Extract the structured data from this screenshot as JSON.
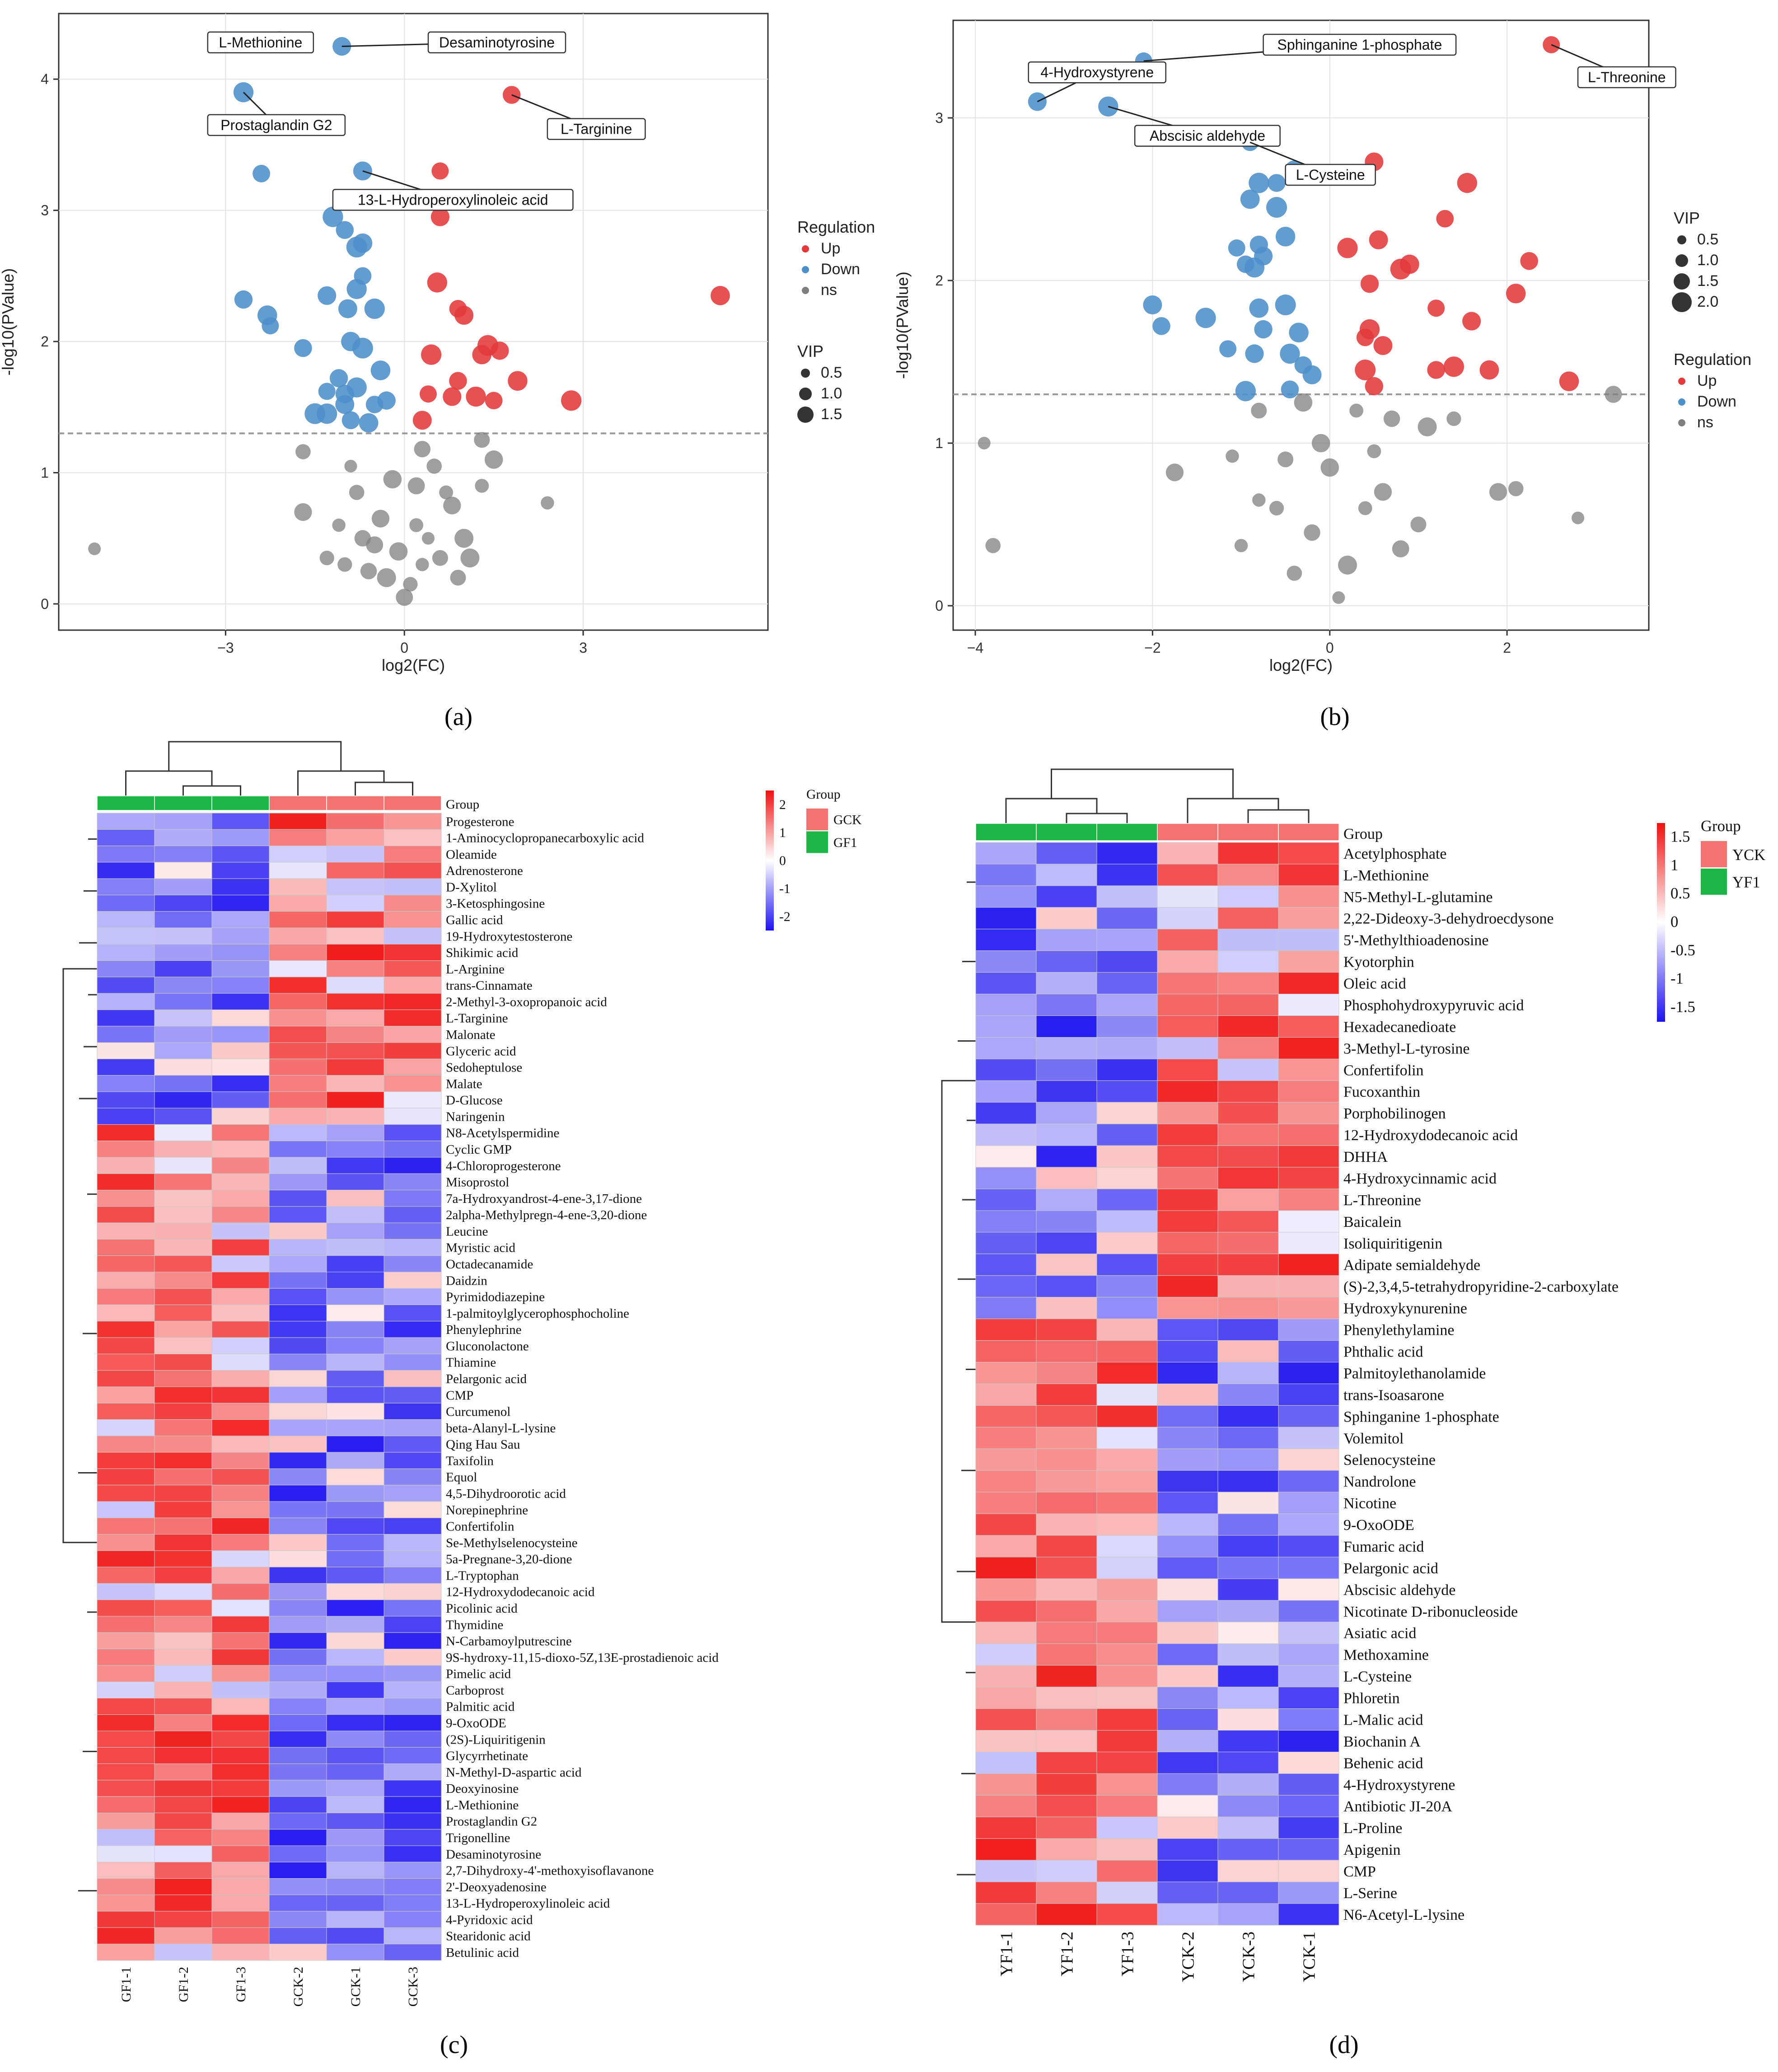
{
  "colors": {
    "up": "#e3393b",
    "down": "#4d8fc9",
    "ns": "#7f7f7f",
    "group_green": "#1db545",
    "group_red": "#f2736f",
    "heat_low": "#1c12f0",
    "heat_mid": "#ffffff",
    "heat_high": "#f01010"
  },
  "panels": {
    "a": "(a)",
    "b": "(b)",
    "c": "(c)",
    "d": "(d)"
  },
  "chart_data": [
    {
      "type": "scatter",
      "panel": "a",
      "xlabel": "log2(FC)",
      "ylabel": "-log10(PValue)",
      "xlim": [
        -5.8,
        6.1
      ],
      "ylim": [
        -0.2,
        4.5
      ],
      "xticks": [
        -3,
        0,
        3
      ],
      "yticks": [
        0,
        1,
        2,
        3,
        4
      ],
      "threshold": 1.3,
      "grid": true,
      "legend": {
        "regulation_title": "Regulation",
        "regulation": [
          "Up",
          "Down",
          "ns"
        ],
        "vip_title": "VIP",
        "vip": [
          "0.5",
          "1.0",
          "1.5"
        ]
      },
      "up": [
        [
          0.6,
          3.3
        ],
        [
          0.6,
          2.95
        ],
        [
          0.55,
          2.45
        ],
        [
          0.9,
          2.25
        ],
        [
          1.0,
          2.2
        ],
        [
          0.45,
          1.9
        ],
        [
          0.9,
          1.7
        ],
        [
          1.3,
          1.9
        ],
        [
          1.4,
          1.97
        ],
        [
          1.6,
          1.93
        ],
        [
          1.9,
          1.7
        ],
        [
          0.4,
          1.6
        ],
        [
          0.8,
          1.58
        ],
        [
          1.2,
          1.58
        ],
        [
          1.5,
          1.55
        ],
        [
          0.3,
          1.4
        ],
        [
          2.8,
          1.55
        ],
        [
          1.8,
          3.88
        ],
        [
          5.3,
          2.35
        ]
      ],
      "down": [
        [
          -2.1,
          4.3
        ],
        [
          -1.05,
          4.25
        ],
        [
          -2.7,
          3.9
        ],
        [
          -2.4,
          3.28
        ],
        [
          -0.7,
          3.3
        ],
        [
          -1.2,
          2.95
        ],
        [
          -1.0,
          2.85
        ],
        [
          -0.7,
          2.75
        ],
        [
          -0.8,
          2.72
        ],
        [
          -2.7,
          2.32
        ],
        [
          -2.3,
          2.2
        ],
        [
          -2.25,
          2.12
        ],
        [
          -1.3,
          2.35
        ],
        [
          -0.8,
          2.4
        ],
        [
          -0.7,
          2.5
        ],
        [
          -0.95,
          2.25
        ],
        [
          -0.5,
          2.25
        ],
        [
          -1.7,
          1.95
        ],
        [
          -0.9,
          2.0
        ],
        [
          -0.7,
          1.95
        ],
        [
          -1.1,
          1.72
        ],
        [
          -0.4,
          1.78
        ],
        [
          -1.3,
          1.62
        ],
        [
          -1.0,
          1.6
        ],
        [
          -0.8,
          1.65
        ],
        [
          -0.5,
          1.52
        ],
        [
          -1.0,
          1.52
        ],
        [
          -1.3,
          1.45
        ],
        [
          -0.9,
          1.4
        ],
        [
          -0.6,
          1.38
        ],
        [
          -1.5,
          1.45
        ],
        [
          -0.3,
          1.55
        ]
      ],
      "ns": [
        [
          -5.2,
          0.42
        ],
        [
          -1.7,
          1.16
        ],
        [
          -1.7,
          0.7
        ],
        [
          2.4,
          0.77
        ],
        [
          1.3,
          1.25
        ],
        [
          1.5,
          1.1
        ],
        [
          1.3,
          0.9
        ],
        [
          0.3,
          1.18
        ],
        [
          -0.3,
          0.2
        ],
        [
          0.1,
          0.15
        ],
        [
          -0.5,
          0.45
        ],
        [
          0.4,
          0.5
        ],
        [
          -0.8,
          0.85
        ],
        [
          0.8,
          0.75
        ],
        [
          -1.1,
          0.6
        ],
        [
          0.6,
          0.35
        ],
        [
          -0.2,
          0.95
        ],
        [
          0.2,
          0.6
        ],
        [
          -0.6,
          0.25
        ],
        [
          1.0,
          0.5
        ],
        [
          -1.3,
          0.35
        ],
        [
          0.0,
          0.05
        ],
        [
          -0.9,
          1.05
        ],
        [
          0.5,
          1.05
        ],
        [
          -0.4,
          0.65
        ],
        [
          0.3,
          0.3
        ],
        [
          0.9,
          0.2
        ],
        [
          -0.1,
          0.4
        ],
        [
          0.7,
          0.85
        ],
        [
          -0.7,
          0.5
        ],
        [
          1.1,
          0.35
        ],
        [
          -1.0,
          0.3
        ],
        [
          0.2,
          0.9
        ]
      ],
      "labels": [
        {
          "text": "L-Methionine",
          "pt": [
            -2.1,
            4.3
          ],
          "box": [
            -3.3,
            4.28
          ]
        },
        {
          "text": "Desaminotyrosine",
          "pt": [
            -1.05,
            4.25
          ],
          "box": [
            0.4,
            4.28
          ]
        },
        {
          "text": "Prostaglandin G2",
          "pt": [
            -2.7,
            3.9
          ],
          "box": [
            -3.3,
            3.65
          ]
        },
        {
          "text": "L-Targinine",
          "pt": [
            1.8,
            3.88
          ],
          "box": [
            2.4,
            3.62
          ]
        },
        {
          "text": "13-L-Hydroperoxylinoleic acid",
          "pt": [
            -0.7,
            3.3
          ],
          "box": [
            -1.2,
            3.08
          ]
        }
      ]
    },
    {
      "type": "scatter",
      "panel": "b",
      "xlabel": "log2(FC)",
      "ylabel": "-log10(PValue)",
      "xlim": [
        -4.25,
        3.6
      ],
      "ylim": [
        -0.15,
        3.6
      ],
      "xticks": [
        -4,
        -2,
        0,
        2
      ],
      "yticks": [
        0,
        1,
        2,
        3
      ],
      "threshold": 1.3,
      "grid": true,
      "legend": {
        "vip_title": "VIP",
        "vip": [
          "0.5",
          "1.0",
          "1.5",
          "2.0"
        ],
        "regulation_title": "Regulation",
        "regulation": [
          "Up",
          "Down",
          "ns"
        ]
      },
      "up": [
        [
          2.5,
          3.45
        ],
        [
          0.5,
          2.73
        ],
        [
          1.55,
          2.6
        ],
        [
          1.3,
          2.38
        ],
        [
          0.55,
          2.25
        ],
        [
          0.2,
          2.2
        ],
        [
          2.25,
          2.12
        ],
        [
          0.9,
          2.1
        ],
        [
          0.8,
          2.07
        ],
        [
          0.45,
          1.98
        ],
        [
          2.1,
          1.92
        ],
        [
          1.2,
          1.83
        ],
        [
          1.6,
          1.75
        ],
        [
          0.45,
          1.7
        ],
        [
          0.4,
          1.65
        ],
        [
          0.6,
          1.6
        ],
        [
          1.4,
          1.47
        ],
        [
          1.2,
          1.45
        ],
        [
          1.8,
          1.45
        ],
        [
          0.4,
          1.45
        ],
        [
          0.5,
          1.35
        ],
        [
          2.7,
          1.38
        ]
      ],
      "down": [
        [
          -2.1,
          3.35
        ],
        [
          -3.3,
          3.1
        ],
        [
          -2.5,
          3.07
        ],
        [
          -0.9,
          2.85
        ],
        [
          -0.4,
          2.68
        ],
        [
          -0.8,
          2.6
        ],
        [
          -0.6,
          2.6
        ],
        [
          -0.9,
          2.5
        ],
        [
          -0.6,
          2.45
        ],
        [
          -0.8,
          2.22
        ],
        [
          -0.5,
          2.27
        ],
        [
          -1.05,
          2.2
        ],
        [
          -0.75,
          2.15
        ],
        [
          -0.85,
          2.08
        ],
        [
          -0.95,
          2.1
        ],
        [
          -2.0,
          1.85
        ],
        [
          -1.4,
          1.77
        ],
        [
          -1.9,
          1.72
        ],
        [
          -0.8,
          1.83
        ],
        [
          -0.5,
          1.85
        ],
        [
          -0.75,
          1.7
        ],
        [
          -0.35,
          1.68
        ],
        [
          -1.15,
          1.58
        ],
        [
          -0.85,
          1.55
        ],
        [
          -0.45,
          1.55
        ],
        [
          -0.3,
          1.48
        ],
        [
          -0.2,
          1.42
        ],
        [
          -0.95,
          1.32
        ],
        [
          -0.45,
          1.33
        ]
      ],
      "ns": [
        [
          -3.9,
          1.0
        ],
        [
          -3.8,
          0.37
        ],
        [
          -1.75,
          0.82
        ],
        [
          -1.1,
          0.92
        ],
        [
          -0.8,
          1.2
        ],
        [
          -0.3,
          1.25
        ],
        [
          0.3,
          1.2
        ],
        [
          0.7,
          1.15
        ],
        [
          1.1,
          1.1
        ],
        [
          1.4,
          1.15
        ],
        [
          3.2,
          1.3
        ],
        [
          2.8,
          0.54
        ],
        [
          2.1,
          0.72
        ],
        [
          1.9,
          0.7
        ],
        [
          -1.0,
          0.37
        ],
        [
          -0.5,
          0.9
        ],
        [
          0.0,
          0.85
        ],
        [
          0.4,
          0.6
        ],
        [
          -0.2,
          0.45
        ],
        [
          0.2,
          0.25
        ],
        [
          -0.6,
          0.6
        ],
        [
          0.8,
          0.35
        ],
        [
          0.1,
          0.05
        ],
        [
          -0.4,
          0.2
        ],
        [
          0.6,
          0.7
        ],
        [
          -0.8,
          0.65
        ],
        [
          1.0,
          0.5
        ],
        [
          -0.1,
          1.0
        ],
        [
          0.5,
          0.95
        ]
      ],
      "labels": [
        {
          "text": "Sphinganine 1-phosphate",
          "pt": [
            -2.1,
            3.35
          ],
          "box": [
            -0.75,
            3.45
          ]
        },
        {
          "text": "4-Hydroxystyrene",
          "pt": [
            -3.3,
            3.1
          ],
          "box": [
            -3.4,
            3.28
          ]
        },
        {
          "text": "Abscisic aldehyde",
          "pt": [
            -2.5,
            3.07
          ],
          "box": [
            -2.2,
            2.89
          ]
        },
        {
          "text": "L-Cysteine",
          "pt": [
            -0.9,
            2.85
          ],
          "box": [
            -0.5,
            2.65
          ]
        },
        {
          "text": "L-Threonine",
          "pt": [
            2.5,
            3.45
          ],
          "box": [
            2.8,
            3.25
          ]
        }
      ]
    },
    {
      "type": "heatmap",
      "panel": "c",
      "columns": [
        "GF1-1",
        "GF1-2",
        "GF1-3",
        "GCK-2",
        "GCK-1",
        "GCK-3"
      ],
      "column_groups": [
        "GF1",
        "GF1",
        "GF1",
        "GCK",
        "GCK",
        "GCK"
      ],
      "group_row_label": "Group",
      "legend": {
        "title": "Group",
        "groups": [
          "GCK",
          "GF1"
        ],
        "scale": [
          "2",
          "1",
          "0",
          "-1",
          "-2"
        ]
      },
      "rows": [
        "Progesterone",
        "1-Aminocyclopropanecarboxylic acid",
        "Oleamide",
        "Adrenosterone",
        "D-Xylitol",
        "3-Ketosphingosine",
        "Gallic acid",
        "19-Hydroxytestosterone",
        "Shikimic acid",
        "L-Arginine",
        "trans-Cinnamate",
        "2-Methyl-3-oxopropanoic acid",
        "L-Targinine",
        "Malonate",
        "Glyceric acid",
        "Sedoheptulose",
        "Malate",
        "D-Glucose",
        "Naringenin",
        "N8-Acetylspermidine",
        "Cyclic GMP",
        "4-Chloroprogesterone",
        "Misoprostol",
        "7a-Hydroxyandrost-4-ene-3,17-dione",
        "2alpha-Methylpregn-4-ene-3,20-dione",
        "Leucine",
        "Myristic acid",
        "Octadecanamide",
        "Daidzin",
        "Pyrimidodiazepine",
        "1-palmitoylglycerophosphocholine",
        "Phenylephrine",
        "Gluconolactone",
        "Thiamine",
        "Pelargonic acid",
        "CMP",
        "Curcumenol",
        "beta-Alanyl-L-lysine",
        "Qing Hau Sau",
        "Taxifolin",
        "Equol",
        "4,5-Dihydroorotic acid",
        "Norepinephrine",
        "Confertifolin",
        "Se-Methylselenocysteine",
        "5a-Pregnane-3,20-dione",
        "L-Tryptophan",
        "12-Hydroxydodecanoic acid",
        "Picolinic acid",
        "Thymidine",
        "N-Carbamoylputrescine",
        "9S-hydroxy-11,15-dioxo-5Z,13E-prostadienoic acid",
        "Pimelic acid",
        "Carboprost",
        "Palmitic acid",
        "9-OxoODE",
        "(2S)-Liquiritigenin",
        "Glycyrrhetinate",
        "N-Methyl-D-aspartic acid",
        "Deoxyinosine",
        "L-Methionine",
        "Prostaglandin G2",
        "Trigonelline",
        "Desaminotyrosine",
        "2,7-Dihydroxy-4'-methoxyisoflavanone",
        "2'-Deoxyadenosine",
        "13-L-Hydroperoxylinoleic acid",
        "4-Pyridoxic acid",
        "Stearidonic acid",
        "Betulinic acid"
      ],
      "row_split": 19
    },
    {
      "type": "heatmap",
      "panel": "d",
      "columns": [
        "YF1-1",
        "YF1-2",
        "YF1-3",
        "YCK-2",
        "YCK-3",
        "YCK-1"
      ],
      "column_groups": [
        "YF1",
        "YF1",
        "YF1",
        "YCK",
        "YCK",
        "YCK"
      ],
      "group_row_label": "Group",
      "legend": {
        "title": "Group",
        "groups": [
          "YCK",
          "YF1"
        ],
        "scale": [
          "1.5",
          "1",
          "0.5",
          "0",
          "-0.5",
          "-1",
          "-1.5"
        ]
      },
      "rows": [
        "Acetylphosphate",
        "L-Methionine",
        "N5-Methyl-L-glutamine",
        "2,22-Dideoxy-3-dehydroecdysone",
        "5'-Methylthioadenosine",
        "Kyotorphin",
        "Oleic acid",
        "Phosphohydroxypyruvic acid",
        "Hexadecanedioate",
        "3-Methyl-L-tyrosine",
        "Confertifolin",
        "Fucoxanthin",
        "Porphobilinogen",
        "12-Hydroxydodecanoic acid",
        "DHHA",
        "4-Hydroxycinnamic acid",
        "L-Threonine",
        "Baicalein",
        "Isoliquiritigenin",
        "Adipate semialdehyde",
        "(S)-2,3,4,5-tetrahydropyridine-2-carboxylate",
        "Hydroxykynurenine",
        "Phenylethylamine",
        "Phthalic acid",
        "Palmitoylethanolamide",
        "trans-Isoasarone",
        "Sphinganine 1-phosphate",
        "Volemitol",
        "Selenocysteine",
        "Nandrolone",
        "Nicotine",
        "9-OxoODE",
        "Fumaric acid",
        "Pelargonic acid",
        "Abscisic aldehyde",
        "Nicotinate D-ribonucleoside",
        "Asiatic acid",
        "Methoxamine",
        "L-Cysteine",
        "Phloretin",
        "L-Malic acid",
        "Biochanin A",
        "Behenic acid",
        "4-Hydroxystyrene",
        "Antibiotic JI-20A",
        "L-Proline",
        "Apigenin",
        "CMP",
        "L-Serine",
        "N6-Acetyl-L-lysine"
      ],
      "row_split": 22
    }
  ]
}
